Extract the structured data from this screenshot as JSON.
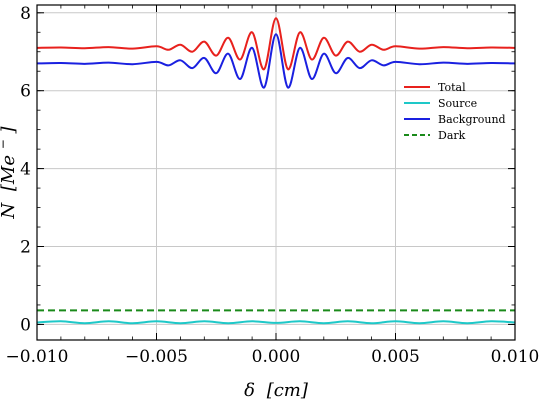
{
  "chart_data": {
    "type": "line",
    "title": "",
    "xlabel_symbol": "δ",
    "xlabel_unit": "[cm]",
    "ylabel_symbol": "N",
    "ylabel_unit": "[Me",
    "ylabel_exponent": "−",
    "ylabel_close": "]",
    "xlim": [
      -0.01,
      0.01
    ],
    "ylim": [
      -0.4,
      8.2
    ],
    "xticks": [
      -0.01,
      -0.005,
      0.0,
      0.005,
      0.01
    ],
    "xtick_labels": [
      "−0.010",
      "−0.005",
      "0.000",
      "0.005",
      "0.010"
    ],
    "yticks": [
      0,
      2,
      4,
      6,
      8
    ],
    "ytick_labels": [
      "0",
      "2",
      "4",
      "6",
      "8"
    ],
    "grid": true,
    "legend_position": "right",
    "series": [
      {
        "name": "Total",
        "color": "#e8211d",
        "dash": "solid",
        "x": [
          -0.01,
          -0.009,
          -0.008,
          -0.007,
          -0.006,
          -0.005,
          -0.0045,
          -0.004,
          -0.0035,
          -0.003,
          -0.0025,
          -0.002,
          -0.0015,
          -0.001,
          -0.0005,
          0.0,
          0.0005,
          0.001,
          0.0015,
          0.002,
          0.0025,
          0.003,
          0.0035,
          0.004,
          0.0045,
          0.005,
          0.006,
          0.007,
          0.008,
          0.009,
          0.01
        ],
        "values": [
          7.1,
          7.11,
          7.09,
          7.12,
          7.08,
          7.14,
          7.05,
          7.18,
          7.0,
          7.26,
          6.9,
          7.36,
          6.8,
          7.5,
          6.55,
          7.86,
          6.55,
          7.5,
          6.8,
          7.36,
          6.9,
          7.26,
          7.0,
          7.18,
          7.05,
          7.14,
          7.08,
          7.12,
          7.09,
          7.11,
          7.1
        ]
      },
      {
        "name": "Source",
        "color": "#1ec8c8",
        "dash": "solid",
        "x": [
          -0.01,
          -0.009,
          -0.008,
          -0.007,
          -0.006,
          -0.005,
          -0.004,
          -0.003,
          -0.002,
          -0.001,
          0.0,
          0.001,
          0.002,
          0.003,
          0.004,
          0.005,
          0.006,
          0.007,
          0.008,
          0.009,
          0.01
        ],
        "values": [
          0.05,
          0.08,
          0.03,
          0.08,
          0.03,
          0.08,
          0.03,
          0.08,
          0.03,
          0.08,
          0.04,
          0.08,
          0.03,
          0.08,
          0.03,
          0.08,
          0.03,
          0.08,
          0.03,
          0.08,
          0.05
        ]
      },
      {
        "name": "Background",
        "color": "#1a20e0",
        "dash": "solid",
        "x": [
          -0.01,
          -0.009,
          -0.008,
          -0.007,
          -0.006,
          -0.005,
          -0.0045,
          -0.004,
          -0.0035,
          -0.003,
          -0.0025,
          -0.002,
          -0.0015,
          -0.001,
          -0.0005,
          0.0,
          0.0005,
          0.001,
          0.0015,
          0.002,
          0.0025,
          0.003,
          0.0035,
          0.004,
          0.0045,
          0.005,
          0.006,
          0.007,
          0.008,
          0.009,
          0.01
        ],
        "values": [
          6.7,
          6.71,
          6.69,
          6.72,
          6.68,
          6.74,
          6.65,
          6.78,
          6.58,
          6.84,
          6.45,
          6.95,
          6.3,
          7.1,
          6.08,
          7.45,
          6.08,
          7.1,
          6.3,
          6.95,
          6.45,
          6.84,
          6.58,
          6.78,
          6.65,
          6.74,
          6.68,
          6.72,
          6.69,
          6.71,
          6.7
        ]
      },
      {
        "name": "Dark",
        "color": "#1a8a1a",
        "dash": "dashed",
        "x": [
          -0.01,
          0.01
        ],
        "values": [
          0.36,
          0.36
        ]
      }
    ]
  }
}
